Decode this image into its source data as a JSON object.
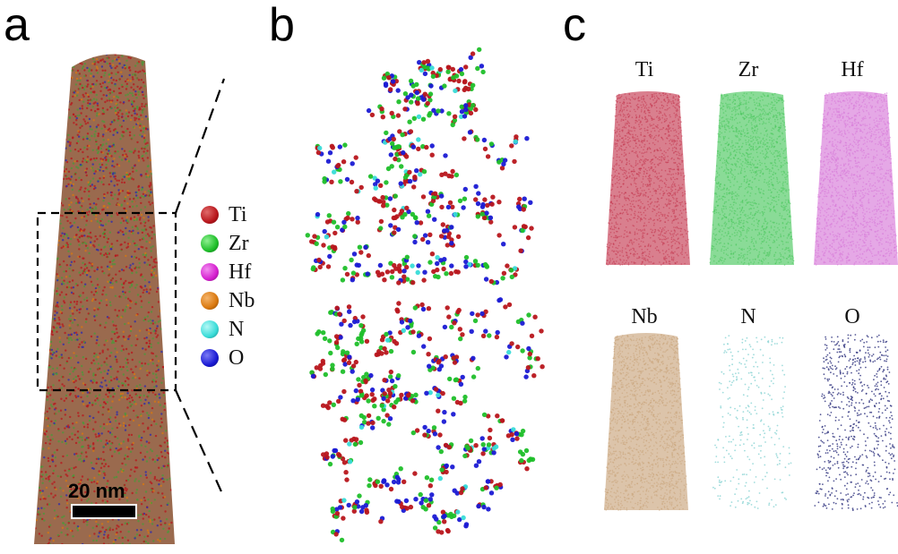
{
  "panels": {
    "a": {
      "letter": "a",
      "scale_bar": "20 nm"
    },
    "b": {
      "letter": "b"
    },
    "c": {
      "letter": "c"
    }
  },
  "legend": [
    {
      "label": "Ti",
      "color": "#b8161c"
    },
    {
      "label": "Zr",
      "color": "#1fbf2a"
    },
    {
      "label": "Hf",
      "color": "#d51fcf"
    },
    {
      "label": "Nb",
      "color": "#d9780f"
    },
    {
      "label": "N",
      "color": "#38dcd8"
    },
    {
      "label": "O",
      "color": "#1a1ad4"
    }
  ],
  "element_maps": [
    {
      "label": "Ti",
      "color": "#c43a52"
    },
    {
      "label": "Zr",
      "color": "#4cc85f"
    },
    {
      "label": "Hf",
      "color": "#d77ad8"
    },
    {
      "label": "Nb",
      "color": "#c9a57c"
    },
    {
      "label": "N",
      "color": "#8fd6d6"
    },
    {
      "label": "O",
      "color": "#3a3d85"
    }
  ]
}
